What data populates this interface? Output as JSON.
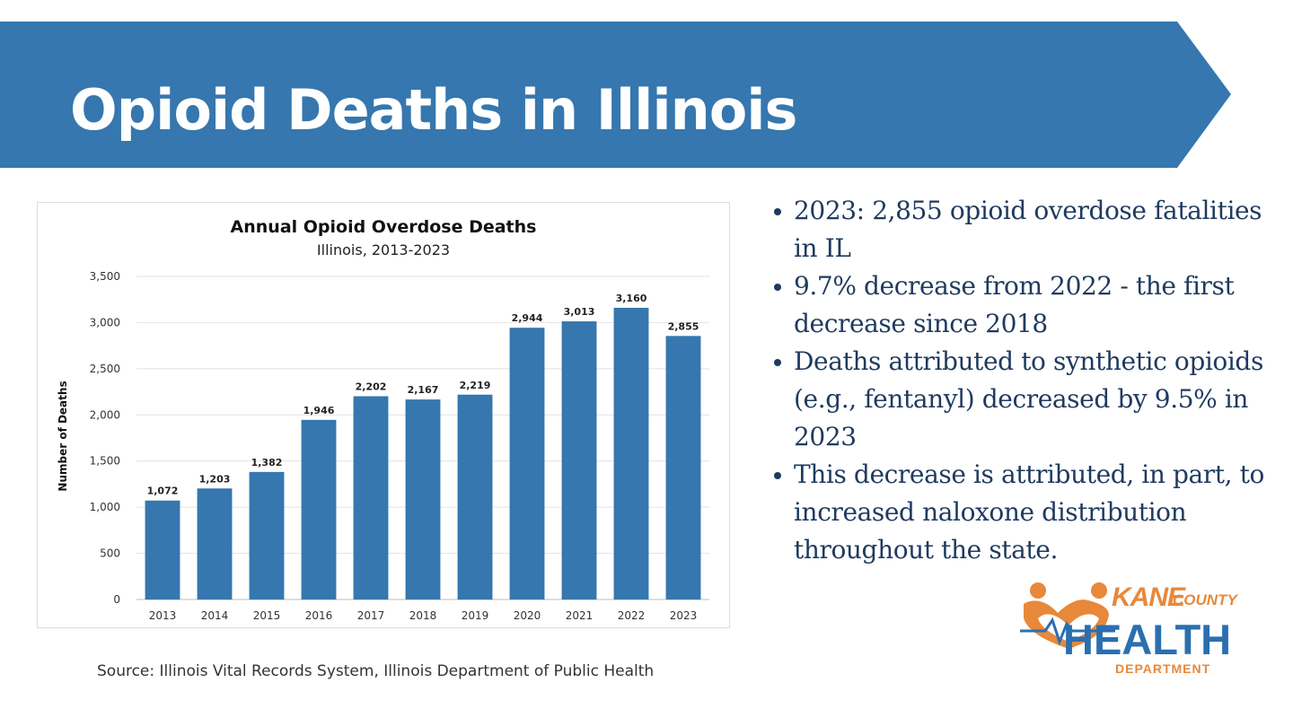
{
  "header": {
    "title": "Opioid Deaths in Illinois"
  },
  "colors": {
    "banner": "#3577ae",
    "bar": "#3577ae",
    "bullet_text": "#1f3a5f",
    "logo_orange": "#e8883a",
    "logo_blue": "#2a6fb0"
  },
  "chart_data": {
    "type": "bar",
    "title": "Annual Opioid Overdose Deaths",
    "subtitle": "Illinois, 2013-2023",
    "xlabel": "",
    "ylabel": "Number of Deaths",
    "categories": [
      "2013",
      "2014",
      "2015",
      "2016",
      "2017",
      "2018",
      "2019",
      "2020",
      "2021",
      "2022",
      "2023"
    ],
    "values": [
      1072,
      1203,
      1382,
      1946,
      2202,
      2167,
      2219,
      2944,
      3013,
      3160,
      2855
    ],
    "value_labels": [
      "1,072",
      "1,203",
      "1,382",
      "1,946",
      "2,202",
      "2,167",
      "2,219",
      "2,944",
      "3,013",
      "3,160",
      "2,855"
    ],
    "ylim": [
      0,
      3500
    ],
    "yticks": [
      0,
      500,
      1000,
      1500,
      2000,
      2500,
      3000,
      3500
    ],
    "ytick_labels": [
      "0",
      "500",
      "1,000",
      "1,500",
      "2,000",
      "2,500",
      "3,000",
      "3,500"
    ],
    "grid": true,
    "legend": "none"
  },
  "source": "Source: Illinois Vital Records System, Illinois Department of Public Health",
  "bullets": [
    "2023: 2,855 opioid overdose fatalities in IL",
    "9.7% decrease from 2022 - the first decrease since 2018",
    "Deaths attributed to synthetic opioids (e.g., fentanyl) decreased by 9.5% in 2023",
    "This decrease is attributed, in part, to increased naloxone distribution throughout the state."
  ],
  "logo": {
    "kane": "KANE",
    "county": "COUNTY",
    "health": "HEALTH",
    "department": "DEPARTMENT"
  }
}
